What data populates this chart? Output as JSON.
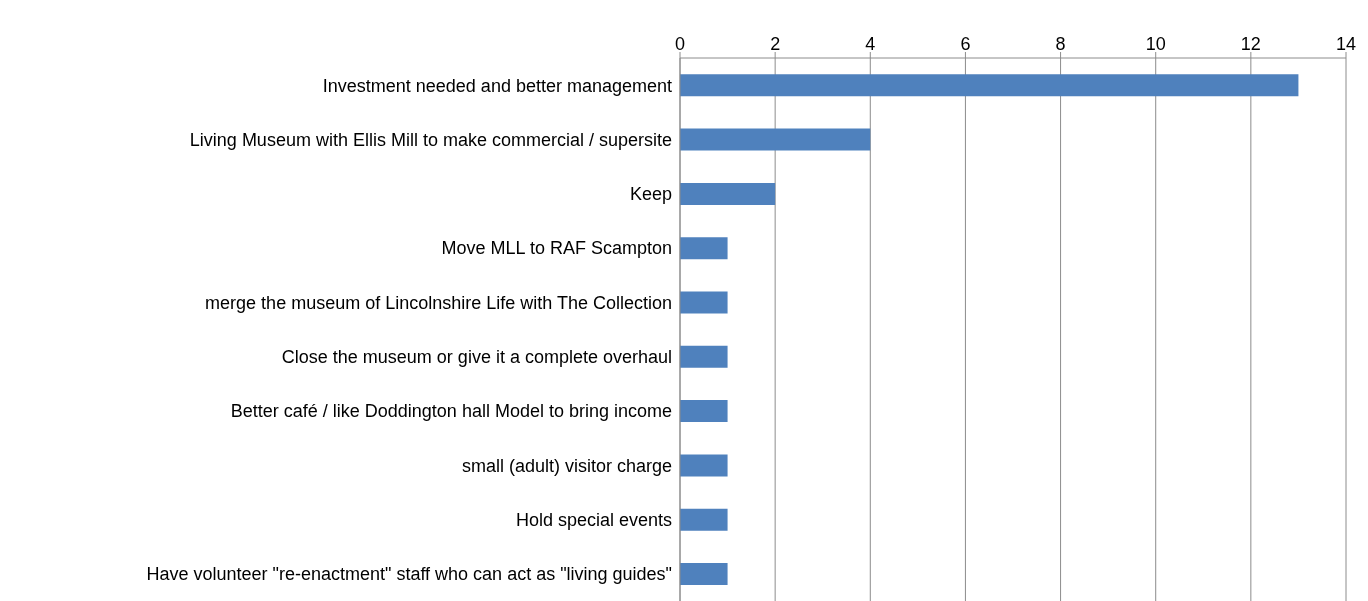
{
  "chart_data": {
    "type": "bar",
    "orientation": "horizontal",
    "categories": [
      "Investment needed and better management",
      "Living Museum with Ellis Mill to make commercial / supersite",
      "Keep",
      "Move MLL to RAF Scampton",
      "merge the museum of Lincolnshire Life with The Collection",
      "Close the museum or give it a complete overhaul",
      "Better café / like Doddington hall Model to bring income",
      "small (adult) visitor charge",
      "Hold special events",
      "Have volunteer \"re-enactment\" staff who can act as \"living guides\""
    ],
    "values": [
      13,
      4,
      2,
      1,
      1,
      1,
      1,
      1,
      1,
      1
    ],
    "color": "#4f81bd",
    "xlim": [
      0,
      14
    ],
    "xticks": [
      0,
      2,
      4,
      6,
      8,
      10,
      12,
      14
    ],
    "grid": "x",
    "legend": false
  }
}
